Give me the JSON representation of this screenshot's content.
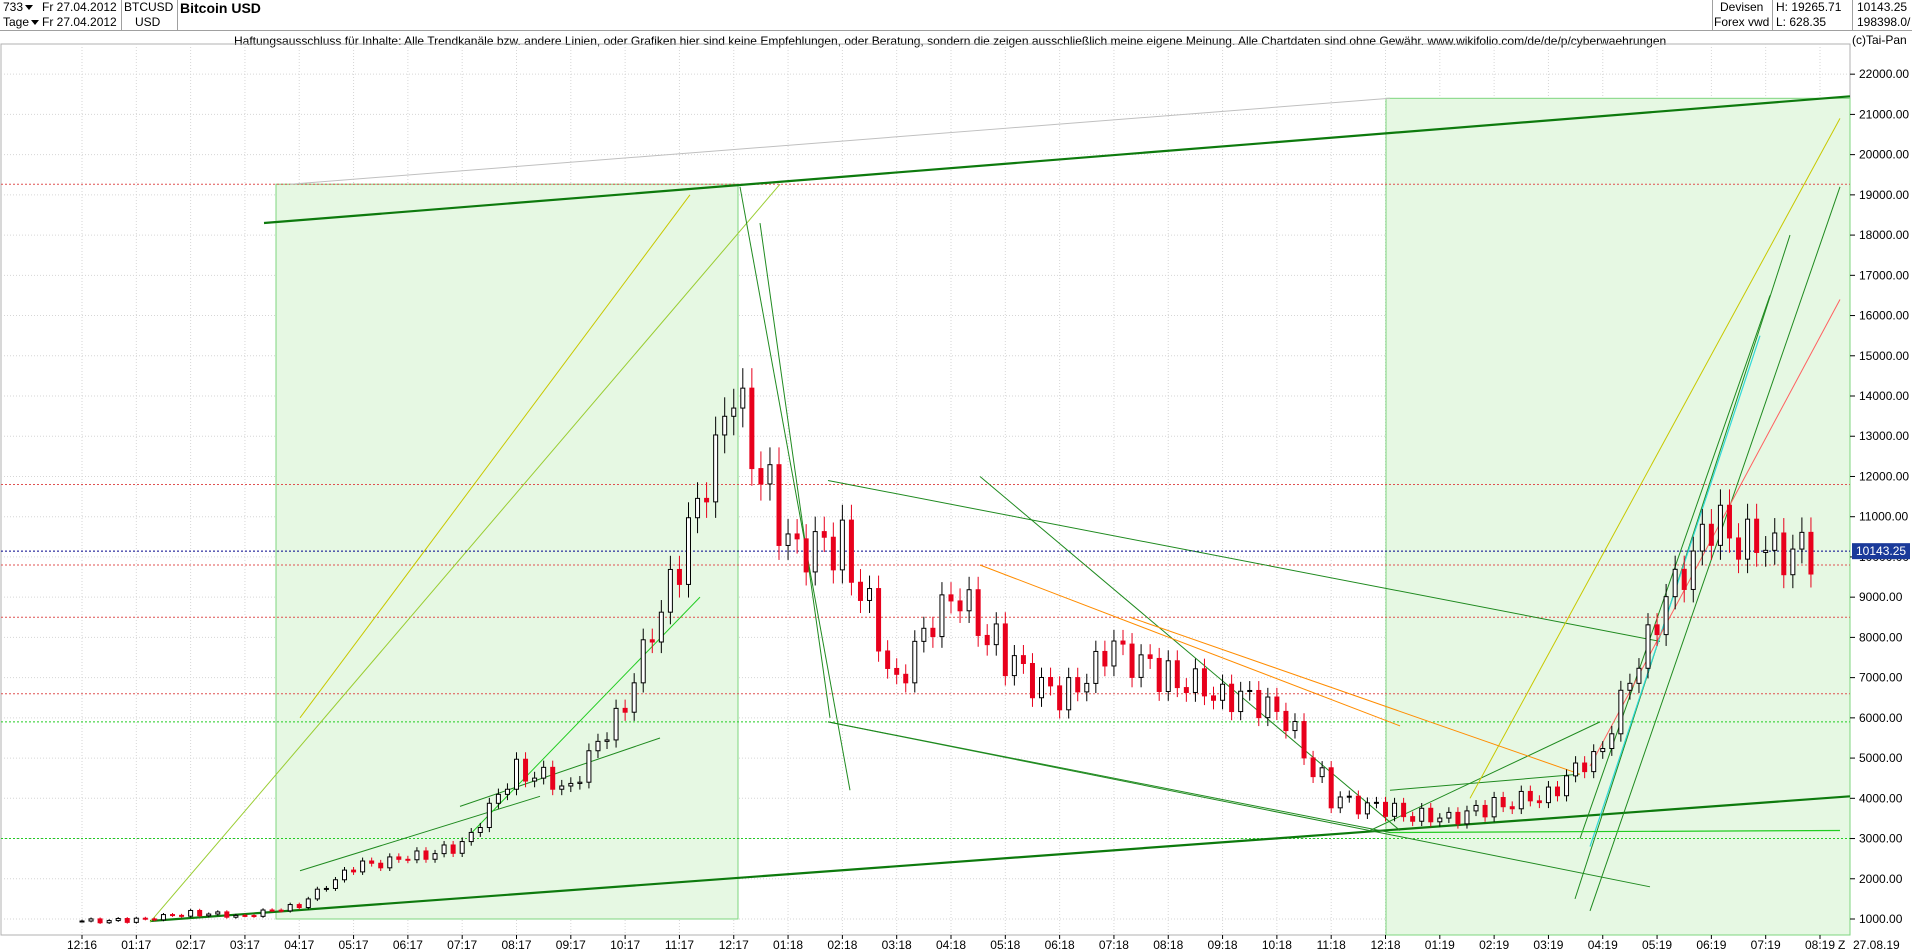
{
  "header": {
    "period_count": "733",
    "interval": "Tage",
    "date_from": "Fr 27.04.2012",
    "date_to": "Fr 27.04.2012",
    "symbol": "BTCUSD",
    "currency": "USD",
    "title": "Bitcoin USD",
    "market": "Devisen",
    "market_sub": "Forex vwd",
    "high_label": "H: 19265.71",
    "low_label": "L: 628.35",
    "value_top": "10143.25",
    "value_bottom": "198398.0/"
  },
  "disclaimer": "Haftungsausschluss für Inhalte: Alle Trendkanäle bzw. andere Linien, oder Grafiken hier sind keine Empfehlungen, oder Beratung, sondern die zeigen ausschließlich meine eigene Meinung. Alle Chartdaten sind ohne Gewähr.  www.wikifolio.com/de/de/p/cyberwaehrungen",
  "copyright": "(c)Tai-Pan",
  "colors": {
    "up": "#000000",
    "down": "#e8001c",
    "trend_green": "#1f8a1f",
    "channel_fill": "#e6f8e3",
    "price_line": "#00008b"
  },
  "chart_data": {
    "type": "candlestick",
    "title": "Bitcoin USD",
    "ylim": [
      700,
      22800
    ],
    "y_ticks": [
      "1000.00",
      "2000.00",
      "3000.00",
      "4000.00",
      "5000.00",
      "6000.00",
      "7000.00",
      "8000.00",
      "9000.00",
      "10000.00",
      "11000.00",
      "12000.00",
      "13000.00",
      "14000.00",
      "15000.00",
      "16000.00",
      "17000.00",
      "18000.00",
      "19000.00",
      "20000.00",
      "21000.00",
      "22000.00"
    ],
    "x_ticks": [
      "12:16",
      "01:17",
      "02:17",
      "03:17",
      "04:17",
      "05:17",
      "06:17",
      "07:17",
      "08:17",
      "09:17",
      "10:17",
      "11:17",
      "12:17",
      "01:18",
      "02:18",
      "03:18",
      "04:18",
      "05:18",
      "06:18",
      "07:18",
      "08:18",
      "09:18",
      "10:18",
      "11:18",
      "12:18",
      "01:19",
      "02:19",
      "03:19",
      "04:19",
      "05:19",
      "06:19",
      "07:19",
      "08:19"
    ],
    "x_end_label": "27.08.19",
    "x_axis_marker": "Z",
    "last_price": 10143.25,
    "last_price_label": "10143.25",
    "series": [
      {
        "date": "2016-12",
        "close": 950
      },
      {
        "date": "2017-01",
        "close": 970
      },
      {
        "date": "2017-02",
        "close": 1150
      },
      {
        "date": "2017-03",
        "close": 1080
      },
      {
        "date": "2017-04",
        "close": 1350
      },
      {
        "date": "2017-05",
        "close": 2300
      },
      {
        "date": "2017-06",
        "close": 2500
      },
      {
        "date": "2017-07",
        "close": 2800
      },
      {
        "date": "2017-08",
        "close": 4700
      },
      {
        "date": "2017-09",
        "close": 4300
      },
      {
        "date": "2017-10",
        "close": 6400
      },
      {
        "date": "2017-11",
        "close": 9900
      },
      {
        "date": "2017-12",
        "close": 14000
      },
      {
        "date": "2018-01",
        "close": 10200
      },
      {
        "date": "2018-02",
        "close": 10300
      },
      {
        "date": "2018-03",
        "close": 6900
      },
      {
        "date": "2018-04",
        "close": 9200
      },
      {
        "date": "2018-05",
        "close": 7500
      },
      {
        "date": "2018-06",
        "close": 6400
      },
      {
        "date": "2018-07",
        "close": 7700
      },
      {
        "date": "2018-08",
        "close": 7000
      },
      {
        "date": "2018-09",
        "close": 6600
      },
      {
        "date": "2018-10",
        "close": 6300
      },
      {
        "date": "2018-11",
        "close": 4000
      },
      {
        "date": "2018-12",
        "close": 3700
      },
      {
        "date": "2019-01",
        "close": 3450
      },
      {
        "date": "2019-02",
        "close": 3800
      },
      {
        "date": "2019-03",
        "close": 4100
      },
      {
        "date": "2019-04",
        "close": 5300
      },
      {
        "date": "2019-05",
        "close": 8550
      },
      {
        "date": "2019-06",
        "close": 10800
      },
      {
        "date": "2019-07",
        "close": 10100
      },
      {
        "date": "2019-08",
        "close": 10143
      }
    ],
    "grid": true
  }
}
